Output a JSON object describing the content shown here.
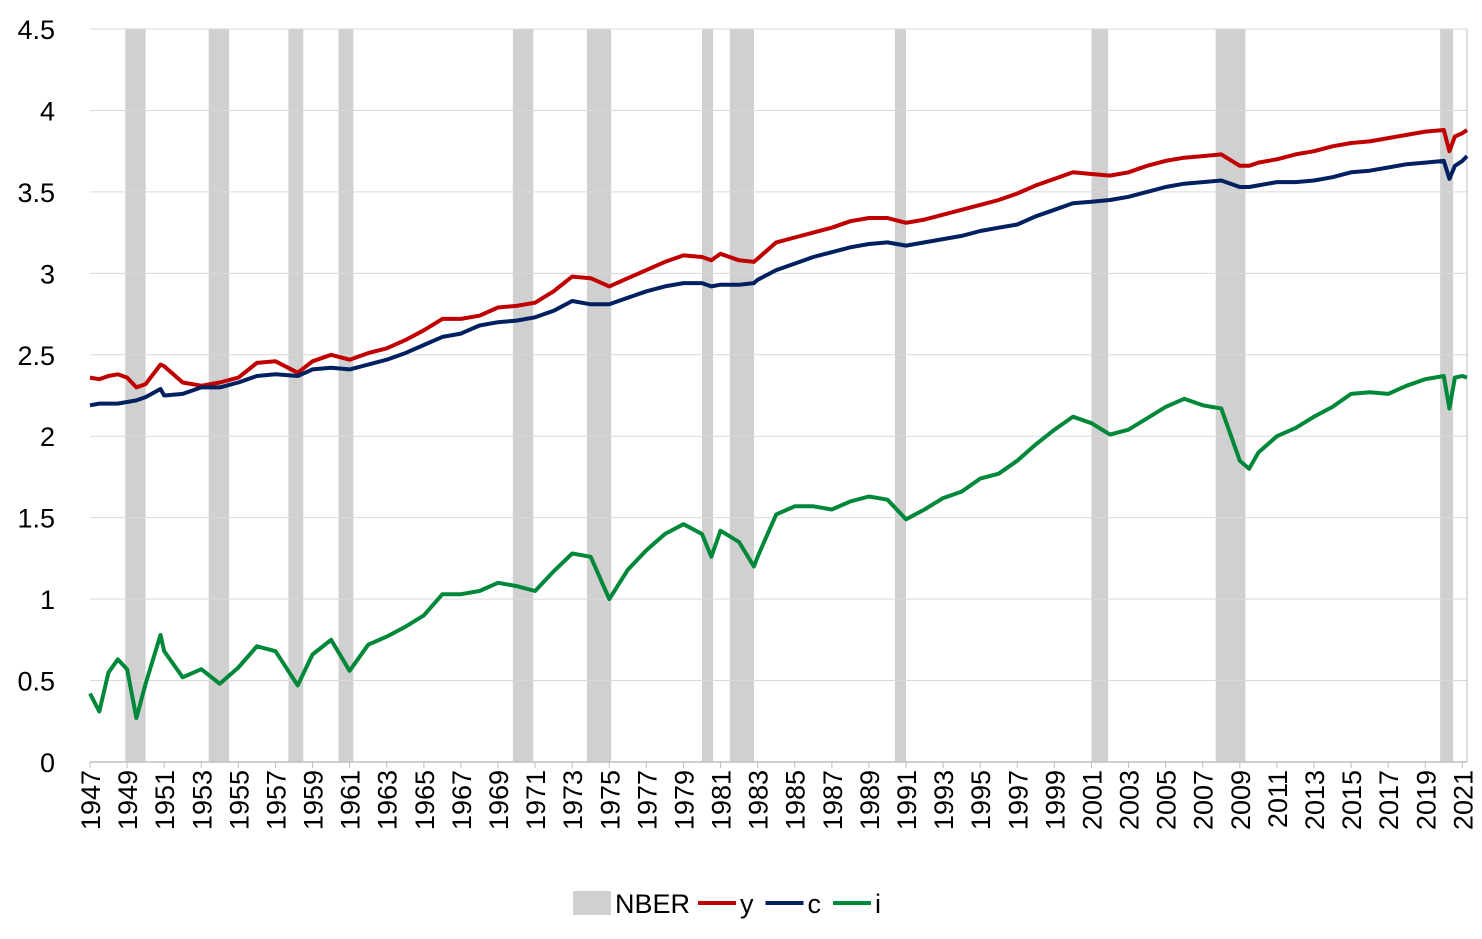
{
  "chart_data": {
    "type": "line",
    "x": [
      1947,
      1947.5,
      1948,
      1948.5,
      1949,
      1949.5,
      1950,
      1950.8,
      1951,
      1952,
      1953,
      1954,
      1955,
      1956,
      1957,
      1958.2,
      1959,
      1960,
      1961,
      1962,
      1963,
      1964,
      1965,
      1966,
      1967,
      1968,
      1969,
      1970,
      1971,
      1972,
      1973,
      1974,
      1975,
      1976,
      1977,
      1978,
      1979,
      1980,
      1980.5,
      1981,
      1982,
      1982.8,
      1983,
      1984,
      1985,
      1986,
      1987,
      1988,
      1989,
      1990,
      1991,
      1992,
      1993,
      1994,
      1995,
      1996,
      1997,
      1998,
      1999,
      2000,
      2001,
      2002,
      2003,
      2004,
      2005,
      2006,
      2007,
      2008,
      2009,
      2009.5,
      2010,
      2011,
      2012,
      2013,
      2014,
      2015,
      2016,
      2017,
      2018,
      2019,
      2020,
      2020.3,
      2020.6,
      2021,
      2021.25
    ],
    "series": [
      {
        "name": "y",
        "color": "#c00000",
        "values": [
          2.36,
          2.35,
          2.37,
          2.38,
          2.36,
          2.3,
          2.32,
          2.44,
          2.43,
          2.33,
          2.31,
          2.33,
          2.36,
          2.45,
          2.46,
          2.39,
          2.46,
          2.5,
          2.47,
          2.51,
          2.54,
          2.59,
          2.65,
          2.72,
          2.72,
          2.74,
          2.79,
          2.8,
          2.82,
          2.89,
          2.98,
          2.97,
          2.92,
          2.97,
          3.02,
          3.07,
          3.11,
          3.1,
          3.08,
          3.12,
          3.08,
          3.07,
          3.09,
          3.19,
          3.22,
          3.25,
          3.28,
          3.32,
          3.34,
          3.34,
          3.31,
          3.33,
          3.36,
          3.39,
          3.42,
          3.45,
          3.49,
          3.54,
          3.58,
          3.62,
          3.61,
          3.6,
          3.62,
          3.66,
          3.69,
          3.71,
          3.72,
          3.73,
          3.66,
          3.66,
          3.68,
          3.7,
          3.73,
          3.75,
          3.78,
          3.8,
          3.81,
          3.83,
          3.85,
          3.87,
          3.88,
          3.75,
          3.84,
          3.86,
          3.88
        ]
      },
      {
        "name": "c",
        "color": "#002060",
        "values": [
          2.19,
          2.2,
          2.2,
          2.2,
          2.21,
          2.22,
          2.24,
          2.29,
          2.25,
          2.26,
          2.3,
          2.3,
          2.33,
          2.37,
          2.38,
          2.37,
          2.41,
          2.42,
          2.41,
          2.44,
          2.47,
          2.51,
          2.56,
          2.61,
          2.63,
          2.68,
          2.7,
          2.71,
          2.73,
          2.77,
          2.83,
          2.81,
          2.81,
          2.85,
          2.89,
          2.92,
          2.94,
          2.94,
          2.92,
          2.93,
          2.93,
          2.94,
          2.96,
          3.02,
          3.06,
          3.1,
          3.13,
          3.16,
          3.18,
          3.19,
          3.17,
          3.19,
          3.21,
          3.23,
          3.26,
          3.28,
          3.3,
          3.35,
          3.39,
          3.43,
          3.44,
          3.45,
          3.47,
          3.5,
          3.53,
          3.55,
          3.56,
          3.57,
          3.53,
          3.53,
          3.54,
          3.56,
          3.56,
          3.57,
          3.59,
          3.62,
          3.63,
          3.65,
          3.67,
          3.68,
          3.69,
          3.58,
          3.66,
          3.69,
          3.72
        ]
      },
      {
        "name": "i",
        "color": "#00883a",
        "values": [
          0.42,
          0.31,
          0.55,
          0.63,
          0.57,
          0.27,
          0.48,
          0.78,
          0.68,
          0.52,
          0.57,
          0.48,
          0.58,
          0.71,
          0.68,
          0.47,
          0.66,
          0.75,
          0.56,
          0.72,
          0.77,
          0.83,
          0.9,
          1.03,
          1.03,
          1.05,
          1.1,
          1.08,
          1.05,
          1.17,
          1.28,
          1.26,
          1.0,
          1.18,
          1.3,
          1.4,
          1.46,
          1.4,
          1.26,
          1.42,
          1.35,
          1.2,
          1.26,
          1.52,
          1.57,
          1.57,
          1.55,
          1.6,
          1.63,
          1.61,
          1.49,
          1.55,
          1.62,
          1.66,
          1.74,
          1.77,
          1.85,
          1.95,
          2.04,
          2.12,
          2.08,
          2.01,
          2.04,
          2.11,
          2.18,
          2.23,
          2.19,
          2.17,
          1.85,
          1.8,
          1.9,
          2.0,
          2.05,
          2.12,
          2.18,
          2.26,
          2.27,
          2.26,
          2.31,
          2.35,
          2.37,
          2.17,
          2.36,
          2.37,
          2.36
        ]
      }
    ],
    "recessions": {
      "name": "NBER",
      "color": "#d0d0d0",
      "periods": [
        [
          1948.9,
          1950.0
        ],
        [
          1953.4,
          1954.5
        ],
        [
          1957.7,
          1958.5
        ],
        [
          1960.4,
          1961.2
        ],
        [
          1969.8,
          1970.9
        ],
        [
          1973.8,
          1975.1
        ],
        [
          1980.0,
          1980.6
        ],
        [
          1981.5,
          1982.8
        ],
        [
          1990.4,
          1991.0
        ],
        [
          2001.0,
          2001.9
        ],
        [
          2007.7,
          2009.3
        ],
        [
          2019.8,
          2020.5
        ]
      ]
    },
    "xlim": [
      1947,
      2021.25
    ],
    "xticks": [
      1947,
      1949,
      1951,
      1953,
      1955,
      1957,
      1959,
      1961,
      1963,
      1965,
      1967,
      1969,
      1971,
      1973,
      1975,
      1977,
      1979,
      1981,
      1983,
      1985,
      1987,
      1989,
      1991,
      1993,
      1995,
      1997,
      1999,
      2001,
      2003,
      2005,
      2007,
      2009,
      2011,
      2013,
      2015,
      2017,
      2019,
      2021
    ],
    "ylim": [
      0,
      4.5
    ],
    "yticks": [
      0,
      0.5,
      1,
      1.5,
      2,
      2.5,
      3,
      3.5,
      4,
      4.5
    ],
    "grid": true,
    "legend": "bottom"
  }
}
